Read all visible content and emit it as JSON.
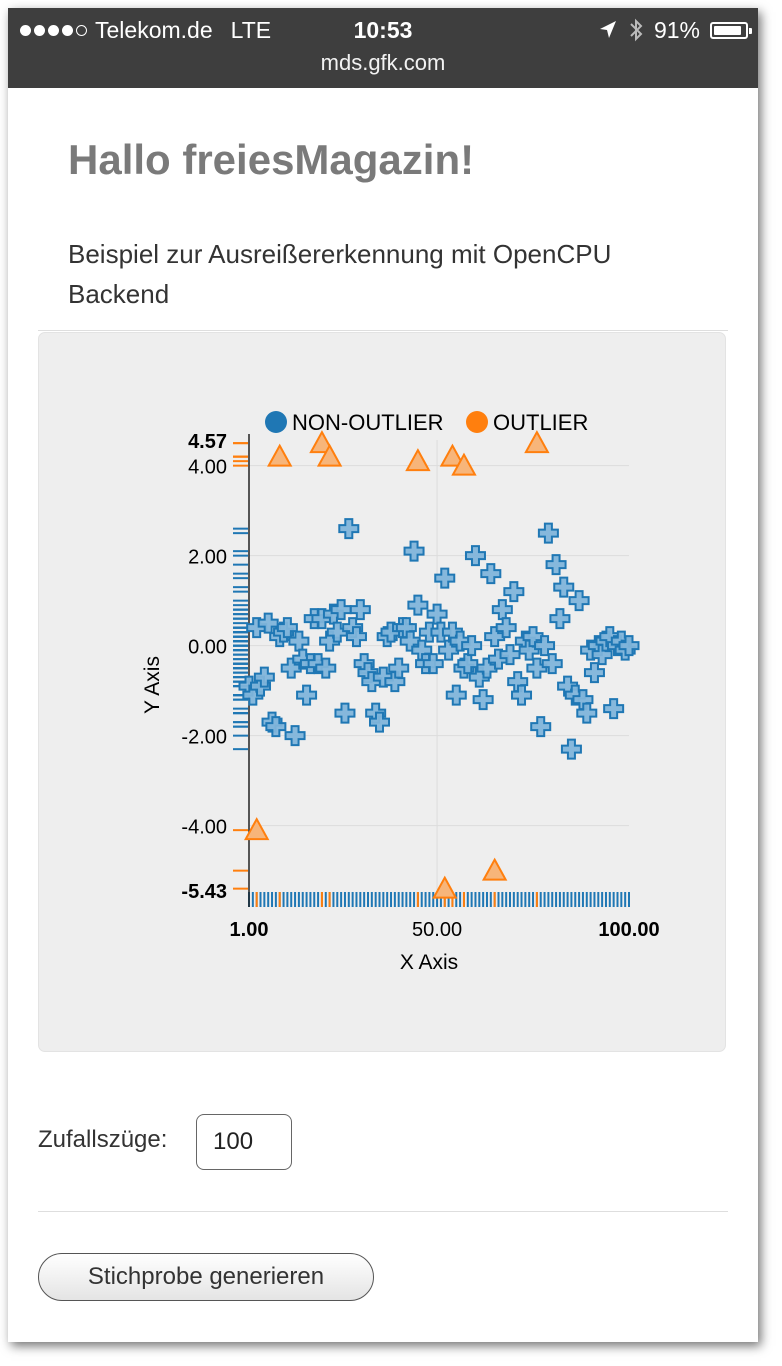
{
  "status_bar": {
    "carrier": "Telekom.de",
    "network": "LTE",
    "time": "10:53",
    "battery": "91%",
    "battery_level": 0.91,
    "signal_bars": 4,
    "url": "mds.gfk.com",
    "icons": [
      "location-arrow-icon",
      "bluetooth-icon",
      "battery-icon"
    ]
  },
  "page": {
    "title": "Hallo freiesMagazin!",
    "intro": "Beispiel zur Ausreißererkennung mit OpenCPU Backend"
  },
  "form": {
    "label": "Zufallszüge:",
    "input_value": "100",
    "button_label": "Stichprobe generieren"
  },
  "colors": {
    "non_outlier": "#1f77b4",
    "outlier": "#ff7f0e",
    "panel_background": "#eeeeee",
    "title": "#7a7a7a"
  },
  "chart_data": {
    "type": "scatter",
    "legend": [
      {
        "label": "NON-OUTLIER",
        "color": "#1f77b4"
      },
      {
        "label": "OUTLIER",
        "color": "#ff7f0e"
      }
    ],
    "legend_position": "top",
    "xlabel": "X Axis",
    "ylabel": "Y Axis",
    "xlim": [
      1,
      100
    ],
    "ylim": [
      -5.43,
      4.57
    ],
    "x_ticks": [
      {
        "value": 1,
        "label": "1.00",
        "bold": true
      },
      {
        "value": 50,
        "label": "50.00",
        "bold": false
      },
      {
        "value": 100,
        "label": "100.00",
        "bold": true
      }
    ],
    "y_ticks": [
      {
        "value": 4.57,
        "label": "4.57",
        "bold": true
      },
      {
        "value": 4,
        "label": "4.00",
        "bold": false
      },
      {
        "value": 2,
        "label": "2.00",
        "bold": false
      },
      {
        "value": 0,
        "label": "0.00",
        "bold": false
      },
      {
        "value": -2,
        "label": "-2.00",
        "bold": false
      },
      {
        "value": -4,
        "label": "-4.00",
        "bold": false
      },
      {
        "value": -5.43,
        "label": "-5.43",
        "bold": true
      }
    ],
    "grid": true,
    "rug": true,
    "series": [
      {
        "name": "NON-OUTLIER",
        "marker": "cross",
        "points": [
          [
            1,
            -0.9
          ],
          [
            2,
            -1.1
          ],
          [
            3,
            0.4
          ],
          [
            4,
            -0.9
          ],
          [
            5,
            -0.7
          ],
          [
            6,
            0.5
          ],
          [
            7,
            -1.7
          ],
          [
            8,
            -1.8
          ],
          [
            9,
            0.2
          ],
          [
            10,
            0.3
          ],
          [
            11,
            0.4
          ],
          [
            12,
            -0.5
          ],
          [
            13,
            -2.0
          ],
          [
            14,
            0.1
          ],
          [
            15,
            -0.3
          ],
          [
            16,
            -1.1
          ],
          [
            17,
            -0.4
          ],
          [
            18,
            0.6
          ],
          [
            19,
            -0.4
          ],
          [
            20,
            0.6
          ],
          [
            21,
            -0.5
          ],
          [
            22,
            0.1
          ],
          [
            23,
            0.7
          ],
          [
            24,
            0.3
          ],
          [
            25,
            0.8
          ],
          [
            26,
            -1.5
          ],
          [
            27,
            2.6
          ],
          [
            28,
            0.4
          ],
          [
            29,
            0.2
          ],
          [
            30,
            0.8
          ],
          [
            31,
            -0.4
          ],
          [
            32,
            -0.6
          ],
          [
            33,
            -0.8
          ],
          [
            34,
            -1.5
          ],
          [
            35,
            -1.7
          ],
          [
            36,
            -0.7
          ],
          [
            37,
            0.2
          ],
          [
            38,
            0.3
          ],
          [
            39,
            -0.8
          ],
          [
            40,
            -0.5
          ],
          [
            41,
            0.4
          ],
          [
            42,
            0.4
          ],
          [
            43,
            0.1
          ],
          [
            44,
            2.1
          ],
          [
            45,
            0.9
          ],
          [
            46,
            -0.1
          ],
          [
            47,
            -0.4
          ],
          [
            48,
            0.3
          ],
          [
            49,
            -0.4
          ],
          [
            50,
            0.7
          ],
          [
            51,
            0.3
          ],
          [
            52,
            1.5
          ],
          [
            53,
            -0.1
          ],
          [
            54,
            0.3
          ],
          [
            55,
            -1.1
          ],
          [
            56,
            0.1
          ],
          [
            57,
            -0.5
          ],
          [
            58,
            -0.4
          ],
          [
            59,
            0.0
          ],
          [
            60,
            2.0
          ],
          [
            61,
            -0.7
          ],
          [
            62,
            -1.2
          ],
          [
            63,
            -0.5
          ],
          [
            64,
            1.6
          ],
          [
            65,
            0.2
          ],
          [
            66,
            -0.3
          ],
          [
            67,
            0.8
          ],
          [
            68,
            0.4
          ],
          [
            69,
            -0.2
          ],
          [
            70,
            1.2
          ],
          [
            71,
            -0.8
          ],
          [
            72,
            -1.1
          ],
          [
            73,
            0.1
          ],
          [
            74,
            -0.1
          ],
          [
            75,
            0.2
          ],
          [
            76,
            -0.5
          ],
          [
            77,
            -1.8
          ],
          [
            78,
            0.0
          ],
          [
            79,
            2.5
          ],
          [
            80,
            -0.4
          ],
          [
            81,
            1.8
          ],
          [
            82,
            0.6
          ],
          [
            83,
            1.3
          ],
          [
            84,
            -0.9
          ],
          [
            85,
            -2.3
          ],
          [
            86,
            -1.1
          ],
          [
            87,
            1.0
          ],
          [
            88,
            -1.2
          ],
          [
            89,
            -1.5
          ],
          [
            90,
            -0.1
          ],
          [
            91,
            -0.6
          ],
          [
            92,
            0.0
          ],
          [
            93,
            -0.2
          ],
          [
            94,
            0.1
          ],
          [
            95,
            0.2
          ],
          [
            96,
            -1.4
          ],
          [
            97,
            0.0
          ],
          [
            98,
            0.1
          ],
          [
            99,
            -0.1
          ],
          [
            100,
            0.0
          ]
        ]
      },
      {
        "name": "OUTLIER",
        "marker": "triangle",
        "points": [
          [
            3,
            -4.1
          ],
          [
            9,
            4.2
          ],
          [
            20,
            4.5
          ],
          [
            22,
            4.2
          ],
          [
            45,
            4.1
          ],
          [
            52,
            -5.4
          ],
          [
            54,
            4.2
          ],
          [
            57,
            4.0
          ],
          [
            65,
            -5.0
          ],
          [
            76,
            4.5
          ]
        ]
      }
    ]
  }
}
